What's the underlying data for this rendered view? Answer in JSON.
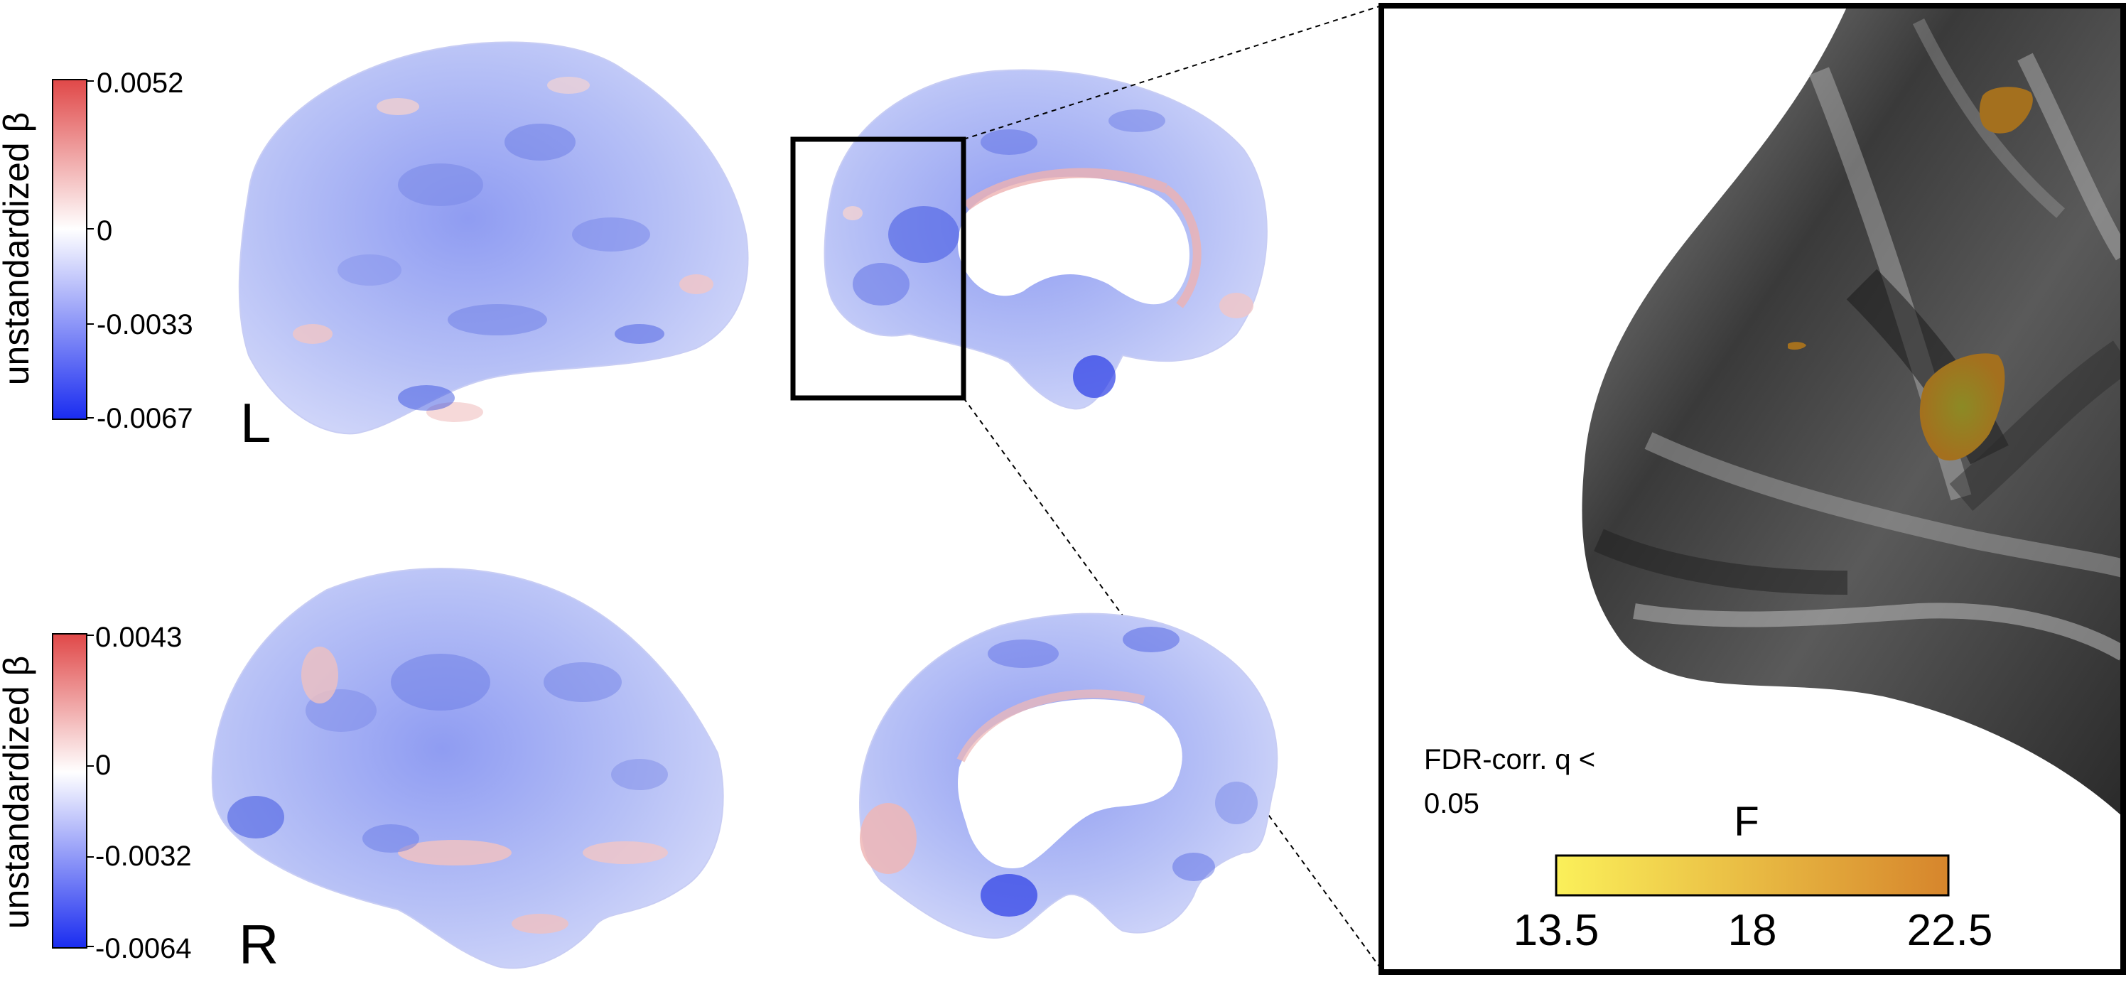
{
  "colorbars": [
    {
      "hemisphere": "left",
      "title": "unstandardized β",
      "ticks": [
        "0.0052",
        "0",
        "-0.0033",
        "-0.0067"
      ]
    },
    {
      "hemisphere": "right",
      "title": "unstandardized β",
      "ticks": [
        "0.0043",
        "0",
        "-0.0032",
        "-0.0064"
      ]
    }
  ],
  "hemisphere_labels": {
    "left": "L",
    "right": "R"
  },
  "inset": {
    "threshold_line1": "FDR-corr. q <",
    "threshold_line2": "0.05",
    "stat_title": "F",
    "stat_ticks": [
      "13.5",
      "18",
      "22.5"
    ],
    "stat_range": [
      13.5,
      22.5
    ]
  },
  "colors": {
    "positive": "#e04848",
    "neutral": "#ffffff",
    "negative": "#1a2cf0",
    "f_low": "#fbf05a",
    "f_high": "#d6852c",
    "surface_dark": "#1c1c1c",
    "surface_light": "#c8c8c8"
  }
}
